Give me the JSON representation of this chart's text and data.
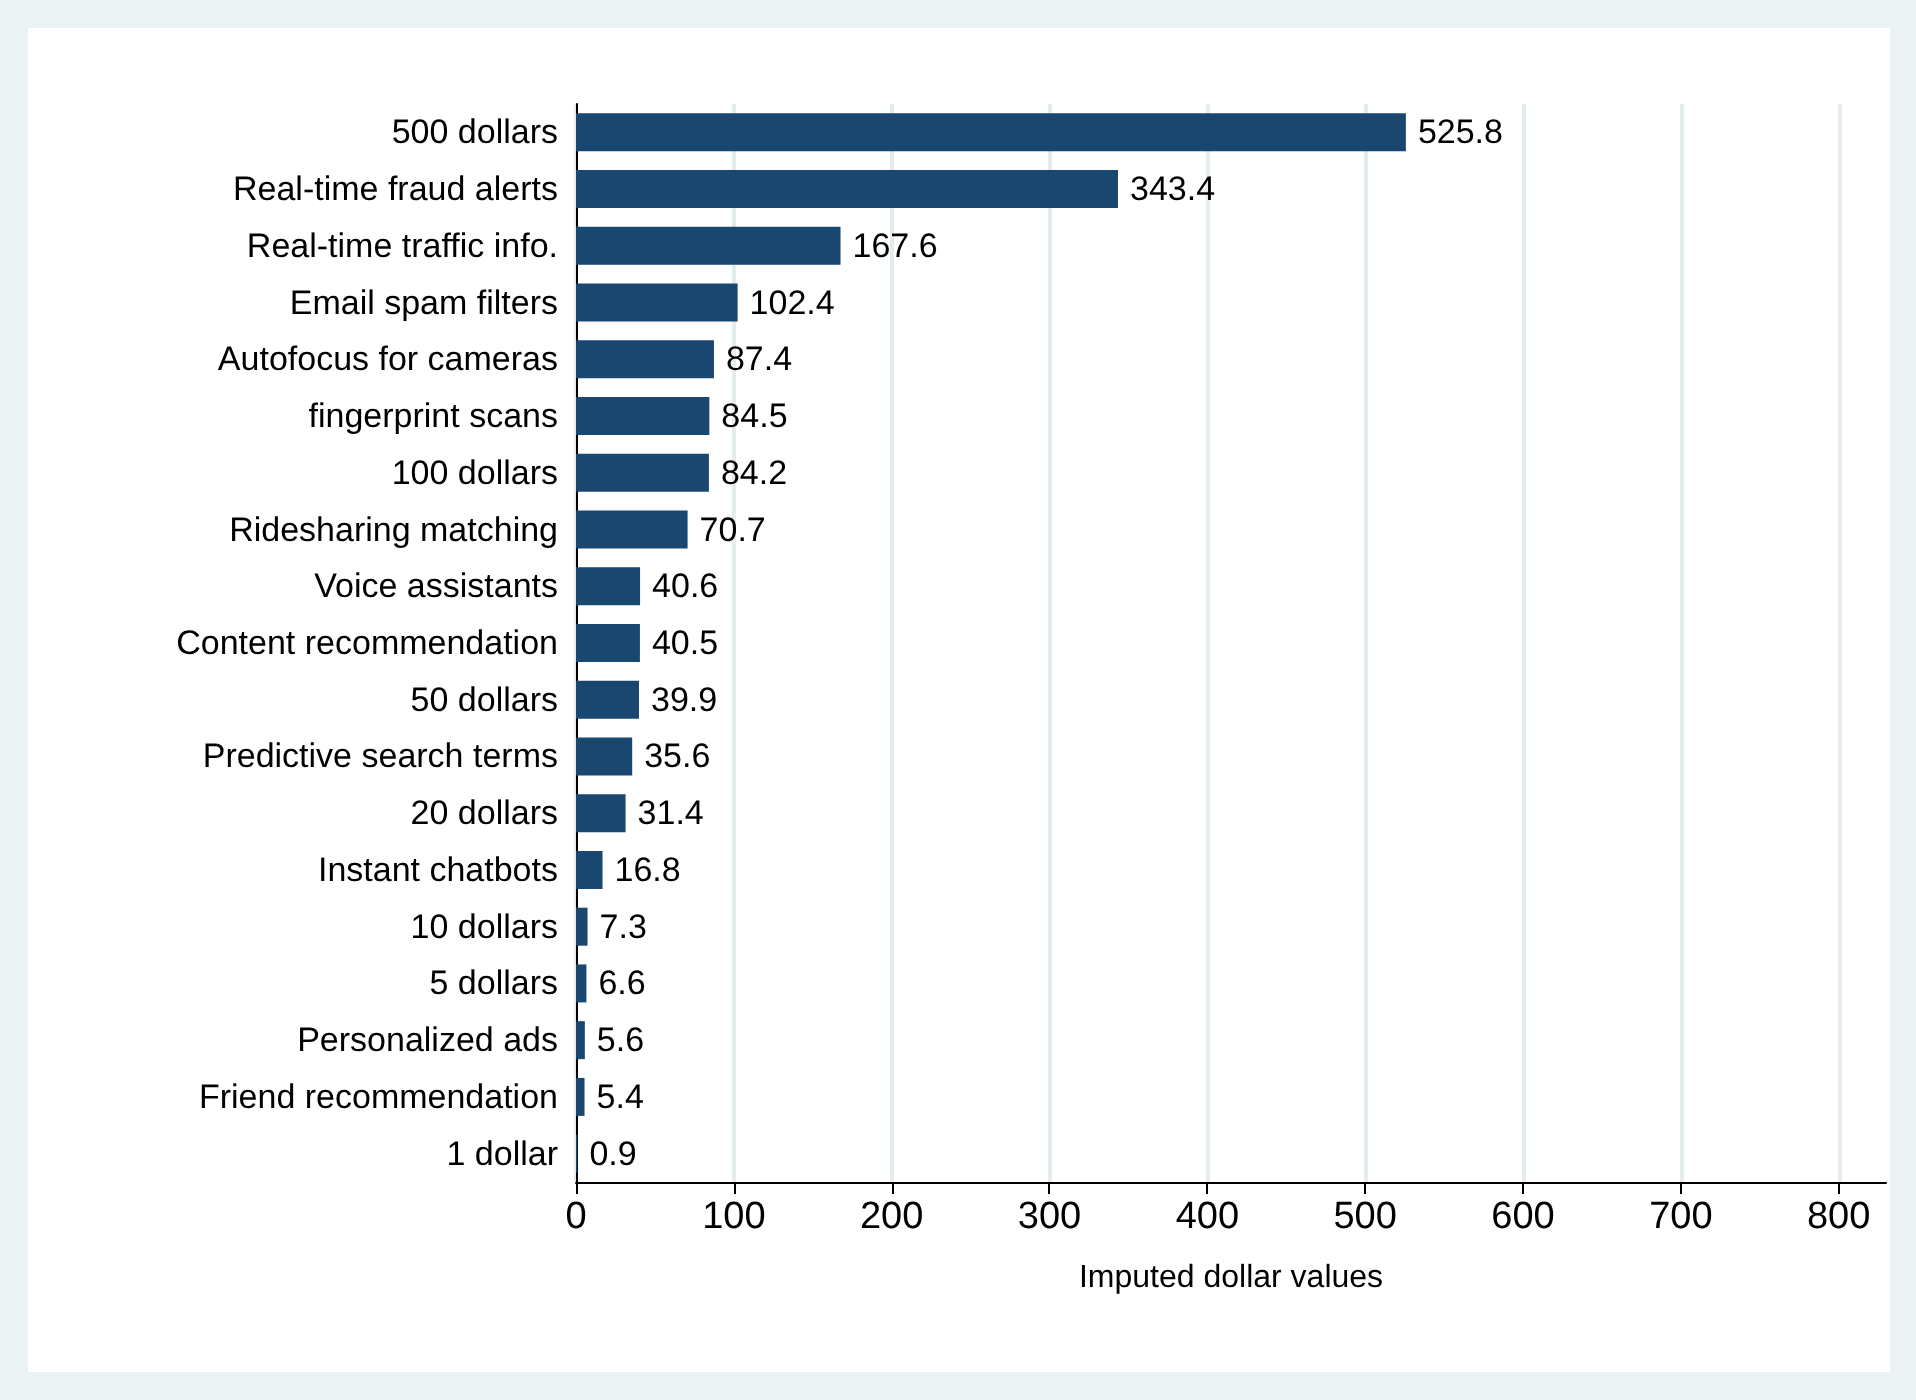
{
  "chart_data": {
    "type": "bar",
    "orientation": "horizontal",
    "xlabel": "Imputed dollar values",
    "categories": [
      "500 dollars",
      "Real-time fraud alerts",
      "Real-time traffic info.",
      "Email spam filters",
      "Autofocus for cameras",
      "fingerprint scans",
      "100 dollars",
      "Ridesharing matching",
      "Voice assistants",
      "Content recommendation",
      "50 dollars",
      "Predictive search terms",
      "20 dollars",
      "Instant chatbots",
      "10 dollars",
      "5 dollars",
      "Personalized ads",
      "Friend recommendation",
      "1 dollar"
    ],
    "values": [
      525.8,
      343.4,
      167.6,
      102.4,
      87.4,
      84.5,
      84.2,
      70.7,
      40.6,
      40.5,
      39.9,
      35.6,
      31.4,
      16.8,
      7.3,
      6.6,
      5.6,
      5.4,
      0.9
    ],
    "color": "#1a476f",
    "xlim": [
      0,
      830
    ],
    "xticks": [
      0,
      100,
      200,
      300,
      400,
      500,
      600,
      700,
      800
    ],
    "grid": "x",
    "data_labels": true
  }
}
